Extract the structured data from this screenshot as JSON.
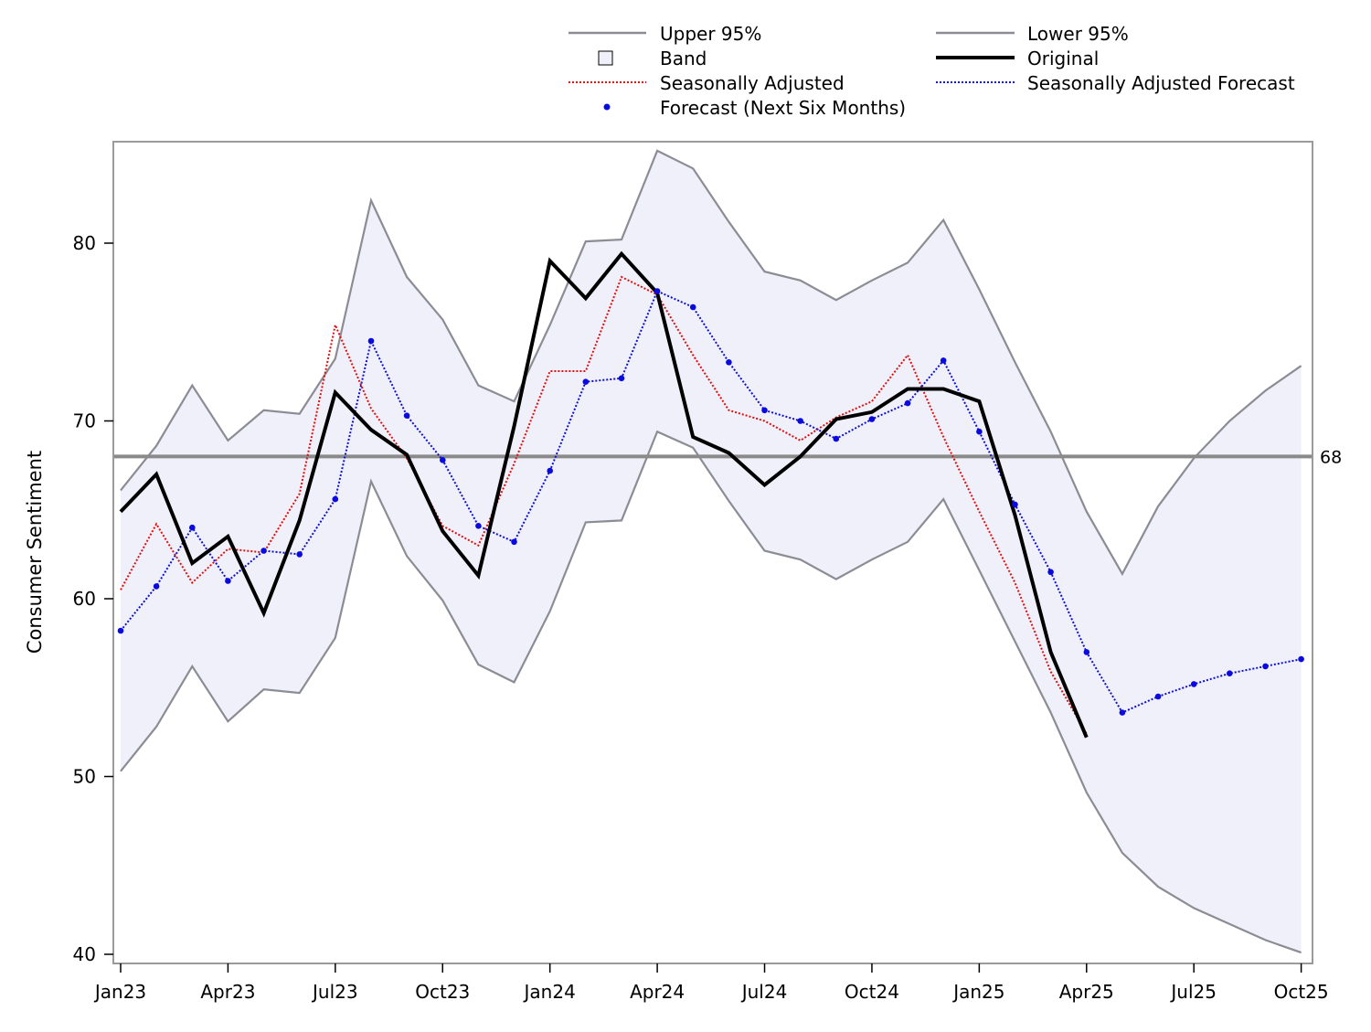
{
  "chart_data": {
    "type": "line",
    "title": "",
    "xlabel": "",
    "ylabel": "Consumer Sentiment",
    "ylim": [
      40,
      85.5
    ],
    "yticks": [
      40,
      50,
      60,
      70,
      80
    ],
    "grid": false,
    "legend_position": "top",
    "x_tick_labels": [
      "Jan23",
      "Apr23",
      "Jul23",
      "Oct23",
      "Jan24",
      "Apr24",
      "Jul24",
      "Oct24",
      "Jan25",
      "Apr25",
      "Jul25",
      "Oct25"
    ],
    "reference_line": {
      "value": 68,
      "label": "68"
    },
    "legend": {
      "upper": "Upper 95%",
      "lower": "Lower 95%",
      "band": "Band",
      "original": "Original",
      "sa": "Seasonally Adjusted",
      "saf": "Seasonally Adjusted Forecast",
      "forecast": "Forecast (Next Six Months)"
    },
    "colors": {
      "band": "#f0f0fa",
      "bounds": "#8c8c94",
      "original": "#000000",
      "sa": "#e01010",
      "saf": "#1010d0",
      "forecast_marker": "#0a0ae0",
      "refline": "#8a8a8a"
    },
    "series": [
      {
        "name": "Upper 95%",
        "values": [
          66.1,
          68.6,
          72.0,
          68.9,
          70.6,
          70.4,
          73.5,
          82.4,
          78.1,
          75.7,
          72.0,
          71.1,
          75.4,
          80.1,
          80.2,
          85.2,
          84.2,
          81.2,
          78.4,
          77.9,
          76.8,
          77.9,
          78.9,
          81.3,
          77.4,
          73.3,
          69.4,
          64.9,
          61.4,
          65.2,
          67.9,
          70.0,
          71.7,
          73.1
        ]
      },
      {
        "name": "Lower 95%",
        "values": [
          50.3,
          52.8,
          56.2,
          53.1,
          54.9,
          54.7,
          57.8,
          66.6,
          62.4,
          59.9,
          56.3,
          55.3,
          59.3,
          64.3,
          64.4,
          69.4,
          68.5,
          65.5,
          62.7,
          62.2,
          61.1,
          62.2,
          63.2,
          65.6,
          61.6,
          57.6,
          53.6,
          49.1,
          45.7,
          43.8,
          42.6,
          41.7,
          40.8,
          40.1
        ]
      },
      {
        "name": "Original",
        "values": [
          64.9,
          67.0,
          62.0,
          63.5,
          59.2,
          64.4,
          71.6,
          69.5,
          68.1,
          63.8,
          61.3,
          69.7,
          79.0,
          76.9,
          79.4,
          77.2,
          69.1,
          68.2,
          66.4,
          68.0,
          70.1,
          70.5,
          71.8,
          71.8,
          71.1,
          64.7,
          57.0,
          52.2
        ]
      },
      {
        "name": "Seasonally Adjusted",
        "values": [
          60.5,
          64.2,
          60.9,
          62.8,
          62.6,
          65.9,
          75.4,
          70.7,
          67.9,
          64.1,
          63.0,
          67.6,
          72.8,
          72.8,
          78.1,
          77.1,
          73.7,
          70.6,
          70.0,
          68.9,
          70.2,
          71.1,
          73.7,
          69.1,
          64.9,
          60.9,
          55.9,
          52.4
        ]
      },
      {
        "name": "Seasonally Adjusted Forecast",
        "values": [
          58.2,
          60.7,
          64.0,
          61.0,
          62.7,
          62.5,
          65.6,
          74.5,
          70.3,
          67.8,
          64.1,
          63.2,
          67.2,
          72.2,
          72.4,
          77.3,
          76.4,
          73.3,
          70.6,
          70.0,
          69.0,
          70.1,
          71.0,
          73.4,
          69.4,
          65.3,
          61.5,
          57.0,
          53.6,
          54.5,
          55.2,
          55.8,
          56.2,
          56.6
        ]
      }
    ]
  }
}
